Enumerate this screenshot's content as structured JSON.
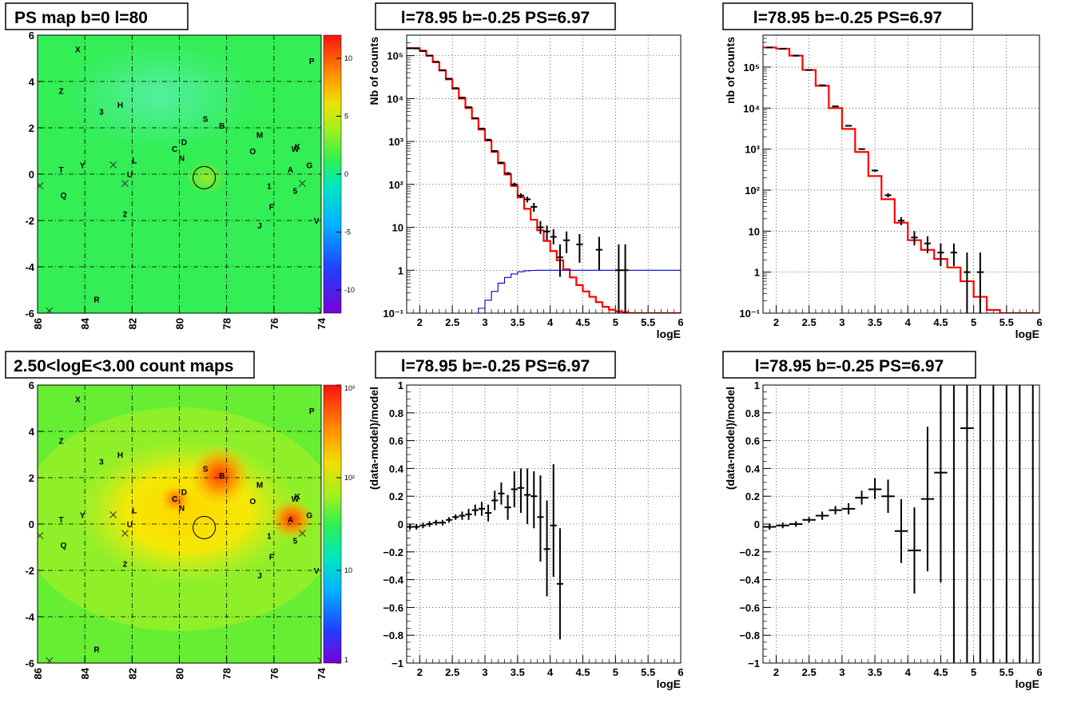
{
  "palette": {
    "data_line": "#000000",
    "model_line": "#ff0000",
    "source_line": "#0000cc",
    "grid": "#000000"
  },
  "maps": [
    {
      "title": "PS map b=0 l=80",
      "x_ticks": [
        "86",
        "84",
        "82",
        "80",
        "78",
        "76",
        "74"
      ],
      "y_ticks": [
        "-6",
        "-4",
        "-2",
        "0",
        "2",
        "4",
        "6"
      ],
      "xlim": [
        86,
        74
      ],
      "ylim": [
        -6,
        6
      ],
      "colorbar_ticks": [
        "10",
        "5",
        "0",
        "-5",
        "-10"
      ],
      "colorbar_range": [
        -12,
        12
      ],
      "colorbar_scale": "linear",
      "kind": "ps"
    },
    {
      "title": "2.50<logE<3.00 count maps",
      "x_ticks": [
        "86",
        "84",
        "82",
        "80",
        "78",
        "76",
        "74"
      ],
      "y_ticks": [
        "-6",
        "-4",
        "-2",
        "0",
        "2",
        "4",
        "6"
      ],
      "xlim": [
        86,
        74
      ],
      "ylim": [
        -6,
        6
      ],
      "colorbar_ticks": [
        "10³",
        "10²",
        "10",
        "1"
      ],
      "colorbar_scale": "log",
      "kind": "counts"
    }
  ],
  "sources": [
    {
      "label": "X",
      "l": 84.3,
      "b": 5.4
    },
    {
      "label": "P",
      "l": 74.4,
      "b": 4.9
    },
    {
      "label": "Z",
      "l": 85.0,
      "b": 3.6
    },
    {
      "label": "H",
      "l": 82.5,
      "b": 3.0
    },
    {
      "label": "3",
      "l": 83.3,
      "b": 2.7
    },
    {
      "label": "S",
      "l": 78.9,
      "b": 2.4
    },
    {
      "label": "B",
      "l": 78.2,
      "b": 2.1
    },
    {
      "label": "M",
      "l": 76.6,
      "b": 1.7
    },
    {
      "label": "D",
      "l": 79.8,
      "b": 1.4
    },
    {
      "label": "C",
      "l": 80.2,
      "b": 1.1
    },
    {
      "label": "O",
      "l": 76.9,
      "b": 1.0
    },
    {
      "label": "W",
      "l": 75.1,
      "b": 1.1
    },
    {
      "label": "K",
      "l": 75.0,
      "b": 1.2
    },
    {
      "label": "N",
      "l": 79.9,
      "b": 0.7
    },
    {
      "label": "L",
      "l": 81.9,
      "b": 0.6
    },
    {
      "label": "G",
      "l": 74.5,
      "b": 0.4
    },
    {
      "label": "T",
      "l": 85.0,
      "b": 0.2
    },
    {
      "label": "Y",
      "l": 84.1,
      "b": 0.4
    },
    {
      "label": "A",
      "l": 75.3,
      "b": 0.2
    },
    {
      "label": "U",
      "l": 82.1,
      "b": 0.0
    },
    {
      "label": "1",
      "l": 76.2,
      "b": -0.5
    },
    {
      "label": "5",
      "l": 75.1,
      "b": -0.7
    },
    {
      "label": "Q",
      "l": 84.9,
      "b": -0.9
    },
    {
      "label": "F",
      "l": 76.1,
      "b": -1.4
    },
    {
      "label": "2",
      "l": 82.3,
      "b": -1.7
    },
    {
      "label": "V",
      "l": 74.2,
      "b": -2.0
    },
    {
      "label": "J",
      "l": 76.6,
      "b": -2.2
    },
    {
      "label": "R",
      "l": 83.5,
      "b": -5.4
    }
  ],
  "cross_markers": [
    {
      "l": 82.8,
      "b": 0.4
    },
    {
      "l": 82.3,
      "b": -0.4
    },
    {
      "l": 85.9,
      "b": -0.5
    },
    {
      "l": 74.8,
      "b": -0.4
    },
    {
      "l": 85.5,
      "b": -5.9
    },
    {
      "l": 74.0,
      "b": -5.9
    }
  ],
  "target_circle": {
    "l": 78.95,
    "b": -0.15
  },
  "count_hotspots": [
    {
      "l": 78.2,
      "b": 2.1,
      "level": 3.0
    },
    {
      "l": 75.3,
      "b": 0.2,
      "level": 2.9
    },
    {
      "l": 80.1,
      "b": 1.2,
      "level": 2.4
    }
  ],
  "chart_data": [
    {
      "type": "line",
      "title": "l=78.95 b=-0.25 PS=6.97",
      "xlabel": "logE",
      "ylabel": "Nb of counts",
      "xlim": [
        1.8,
        6
      ],
      "ylim": [
        0.1,
        300000
      ],
      "yscale": "log",
      "x_ticks": [
        "2",
        "2.5",
        "3",
        "3.5",
        "4",
        "4.5",
        "5",
        "5.5",
        "6"
      ],
      "y_ticks": [
        "10⁻¹",
        "1",
        "10",
        "10²",
        "10³",
        "10⁴",
        "10⁵"
      ],
      "grid": true,
      "series": [
        {
          "role": "model",
          "style": "step",
          "bin_width": 0.1,
          "x": [
            1.8,
            1.9,
            2.0,
            2.1,
            2.2,
            2.3,
            2.4,
            2.5,
            2.6,
            2.7,
            2.8,
            2.9,
            3.0,
            3.1,
            3.2,
            3.3,
            3.4,
            3.5,
            3.6,
            3.7,
            3.8,
            3.9,
            4.0,
            4.1,
            4.2,
            4.3,
            4.4,
            4.5,
            4.6,
            4.7,
            4.8,
            4.9,
            5.0,
            5.1,
            5.2,
            5.3,
            5.4,
            5.5,
            5.6,
            5.7,
            5.8,
            5.9
          ],
          "values": [
            150000,
            150000,
            130000,
            100000,
            70000,
            45000,
            28000,
            17000,
            10000,
            6000,
            3400,
            1900,
            1050,
            570,
            310,
            170,
            92,
            50,
            27,
            15,
            8.5,
            4.8,
            2.8,
            1.7,
            1.05,
            0.68,
            0.45,
            0.32,
            0.24,
            0.18,
            0.14,
            0.12,
            0.11,
            0.105,
            0.1,
            0.1,
            0.1,
            0.1,
            0.1,
            0.1,
            0.1,
            0.1
          ]
        },
        {
          "role": "source",
          "style": "step",
          "bin_width": 0.1,
          "x": [
            1.8,
            1.9,
            2.0,
            2.1,
            2.2,
            2.3,
            2.4,
            2.5,
            2.6,
            2.7,
            2.8,
            2.9,
            3.0,
            3.1,
            3.2,
            3.3,
            3.4,
            3.5,
            3.6,
            3.7,
            3.8,
            3.9,
            4.0,
            4.1,
            4.2,
            4.3,
            4.4,
            4.5,
            4.6,
            4.7,
            4.8,
            4.9,
            5.0,
            5.1,
            5.2,
            5.3,
            5.4,
            5.5,
            5.6,
            5.7,
            5.8,
            5.9
          ],
          "values": [
            0.1,
            0.1,
            0.1,
            0.1,
            0.1,
            0.1,
            0.1,
            0.1,
            0.1,
            0.1,
            0.1,
            0.13,
            0.2,
            0.32,
            0.5,
            0.68,
            0.82,
            0.92,
            0.97,
            0.99,
            1,
            1,
            1,
            1,
            1,
            1,
            1,
            1,
            1,
            1,
            1,
            1,
            1,
            1,
            1,
            1,
            1,
            1,
            1,
            1,
            1,
            1
          ]
        },
        {
          "role": "data",
          "style": "errorbar",
          "x": [
            1.85,
            1.95,
            2.05,
            2.15,
            2.25,
            2.35,
            2.45,
            2.55,
            2.65,
            2.75,
            2.85,
            2.95,
            3.05,
            3.15,
            3.25,
            3.35,
            3.45,
            3.55,
            3.65,
            3.75,
            3.85,
            3.95,
            4.05,
            4.15,
            4.25,
            4.45,
            4.75,
            5.05,
            5.15
          ],
          "values": [
            148000,
            147000,
            128000,
            100000,
            72000,
            46000,
            29000,
            17500,
            10500,
            6300,
            3500,
            2000,
            1100,
            600,
            320,
            180,
            100,
            55,
            45,
            30,
            10,
            8,
            6,
            2,
            5,
            4,
            3,
            1,
            1
          ],
          "y_low": [
            147000,
            146000,
            127000,
            99500,
            71500,
            45800,
            28800,
            17400,
            10400,
            6250,
            3450,
            1950,
            1050,
            570,
            300,
            165,
            90,
            48,
            38,
            23,
            7,
            5,
            4,
            0.7,
            2.5,
            1.5,
            1.0,
            0.1,
            0.1
          ],
          "y_high": [
            149000,
            148000,
            129000,
            100500,
            72500,
            46200,
            29200,
            17600,
            10600,
            6350,
            3550,
            2050,
            1150,
            630,
            340,
            195,
            110,
            62,
            52,
            37,
            14,
            11,
            9,
            4,
            8,
            7,
            6,
            4,
            4
          ]
        }
      ]
    },
    {
      "type": "line",
      "title": "l=78.95 b=-0.25 PS=6.97",
      "xlabel": "logE",
      "ylabel": "nb of counts",
      "xlim": [
        1.8,
        6
      ],
      "ylim": [
        0.1,
        600000
      ],
      "yscale": "log",
      "x_ticks": [
        "2",
        "2.5",
        "3",
        "3.5",
        "4",
        "4.5",
        "5",
        "5.5",
        "6"
      ],
      "y_ticks": [
        "10⁻¹",
        "1",
        "10",
        "10²",
        "10³",
        "10⁴",
        "10⁵"
      ],
      "grid": true,
      "series": [
        {
          "role": "model",
          "style": "step",
          "bin_width": 0.2,
          "x": [
            1.8,
            2.0,
            2.2,
            2.4,
            2.6,
            2.8,
            3.0,
            3.2,
            3.4,
            3.6,
            3.8,
            4.0,
            4.2,
            4.4,
            4.6,
            4.8,
            5.0,
            5.2,
            5.4,
            5.6,
            5.8
          ],
          "values": [
            300000,
            280000,
            190000,
            85000,
            35000,
            10000,
            3100,
            850,
            220,
            60,
            16,
            6,
            3.5,
            2.1,
            1.3,
            0.6,
            0.25,
            0.12,
            0.1,
            0.1,
            0.1
          ]
        },
        {
          "role": "data",
          "style": "errorbar",
          "x": [
            1.9,
            2.1,
            2.3,
            2.5,
            2.7,
            2.9,
            3.1,
            3.3,
            3.5,
            3.7,
            3.9,
            4.1,
            4.3,
            4.5,
            4.7,
            4.9,
            5.1
          ],
          "values": [
            300000,
            280000,
            190000,
            85000,
            36000,
            11000,
            3700,
            1000,
            300,
            75,
            18,
            7,
            5,
            3,
            3,
            1,
            1
          ],
          "y_low": [
            299000,
            279000,
            189000,
            84500,
            35800,
            10900,
            3600,
            960,
            280,
            66,
            14,
            4.5,
            2.9,
            1.4,
            1.4,
            0.1,
            0.1
          ],
          "y_high": [
            301000,
            281000,
            191000,
            85500,
            36200,
            11100,
            3800,
            1040,
            320,
            84,
            22,
            10,
            7.5,
            5,
            5,
            3,
            3
          ]
        }
      ]
    },
    {
      "type": "scatter",
      "title": "l=78.95 b=-0.25 PS=6.97",
      "xlabel": "logE",
      "ylabel": "(data-model)/model",
      "xlim": [
        1.8,
        6
      ],
      "ylim": [
        -1,
        1
      ],
      "x_ticks": [
        "2",
        "2.5",
        "3",
        "3.5",
        "4",
        "4.5",
        "5",
        "5.5",
        "6"
      ],
      "y_ticks": [
        "−1",
        "−0.8",
        "−0.6",
        "−0.4",
        "−0.2",
        "0",
        "0.2",
        "0.4",
        "0.6",
        "0.8",
        "1"
      ],
      "grid": true,
      "series": [
        {
          "role": "data",
          "style": "errorbar",
          "bin_width": 0.1,
          "x": [
            1.85,
            1.95,
            2.05,
            2.15,
            2.25,
            2.35,
            2.45,
            2.55,
            2.65,
            2.75,
            2.85,
            2.95,
            3.05,
            3.15,
            3.25,
            3.35,
            3.45,
            3.55,
            3.65,
            3.75,
            3.85,
            3.95,
            4.05,
            4.15
          ],
          "values": [
            -0.02,
            -0.02,
            -0.01,
            0.0,
            0.01,
            0.01,
            0.03,
            0.05,
            0.06,
            0.07,
            0.1,
            0.11,
            0.08,
            0.17,
            0.22,
            0.12,
            0.25,
            0.26,
            0.21,
            0.2,
            0.05,
            -0.18,
            -0.01,
            -0.43
          ],
          "y_low": [
            -0.04,
            -0.04,
            -0.03,
            -0.02,
            -0.01,
            -0.01,
            0.01,
            0.03,
            0.03,
            0.03,
            0.06,
            0.06,
            0.02,
            0.1,
            0.14,
            0.03,
            0.12,
            0.08,
            0.0,
            -0.03,
            -0.27,
            -0.52,
            -0.38,
            -0.83
          ],
          "y_high": [
            0.0,
            0.0,
            0.01,
            0.02,
            0.03,
            0.03,
            0.05,
            0.07,
            0.09,
            0.11,
            0.14,
            0.16,
            0.14,
            0.24,
            0.3,
            0.21,
            0.38,
            0.4,
            0.4,
            0.38,
            0.35,
            0.17,
            0.43,
            -0.03
          ]
        }
      ]
    },
    {
      "type": "scatter",
      "title": "l=78.95 b=-0.25 PS=6.97",
      "xlabel": "logE",
      "ylabel": "(data-model)/model",
      "xlim": [
        1.8,
        6
      ],
      "ylim": [
        -1,
        1
      ],
      "x_ticks": [
        "2",
        "2.5",
        "3",
        "3.5",
        "4",
        "4.5",
        "5",
        "5.5",
        "6"
      ],
      "y_ticks": [
        "−1",
        "−0.8",
        "−0.6",
        "−0.4",
        "−0.2",
        "0",
        "0.2",
        "0.4",
        "0.6",
        "0.8",
        "1"
      ],
      "grid": true,
      "series": [
        {
          "role": "data",
          "style": "errorbar",
          "bin_width": 0.2,
          "x": [
            1.9,
            2.1,
            2.3,
            2.5,
            2.7,
            2.9,
            3.1,
            3.3,
            3.5,
            3.7,
            3.9,
            4.1,
            4.3,
            4.5,
            4.7,
            4.9,
            5.1,
            5.3,
            5.5,
            5.7,
            5.9
          ],
          "values": [
            -0.02,
            -0.01,
            0.0,
            0.03,
            0.06,
            0.1,
            0.11,
            0.19,
            0.25,
            0.2,
            -0.05,
            -0.19,
            0.18,
            0.37,
            1.2,
            0.69,
            1.5,
            1.5,
            1.5,
            1.5,
            1.5
          ],
          "y_low": [
            -0.04,
            -0.03,
            -0.02,
            0.01,
            0.03,
            0.07,
            0.07,
            0.14,
            0.18,
            0.08,
            -0.28,
            -0.5,
            -0.34,
            -0.42,
            -1.5,
            -1.5,
            -1.5,
            -1.5,
            -1.5,
            -1.5,
            -1.5
          ],
          "y_high": [
            0.0,
            0.01,
            0.02,
            0.05,
            0.09,
            0.13,
            0.15,
            0.24,
            0.33,
            0.32,
            0.18,
            0.12,
            0.7,
            1.5,
            1.5,
            1.5,
            1.5,
            1.5,
            1.5,
            1.5,
            1.5
          ]
        }
      ]
    }
  ]
}
